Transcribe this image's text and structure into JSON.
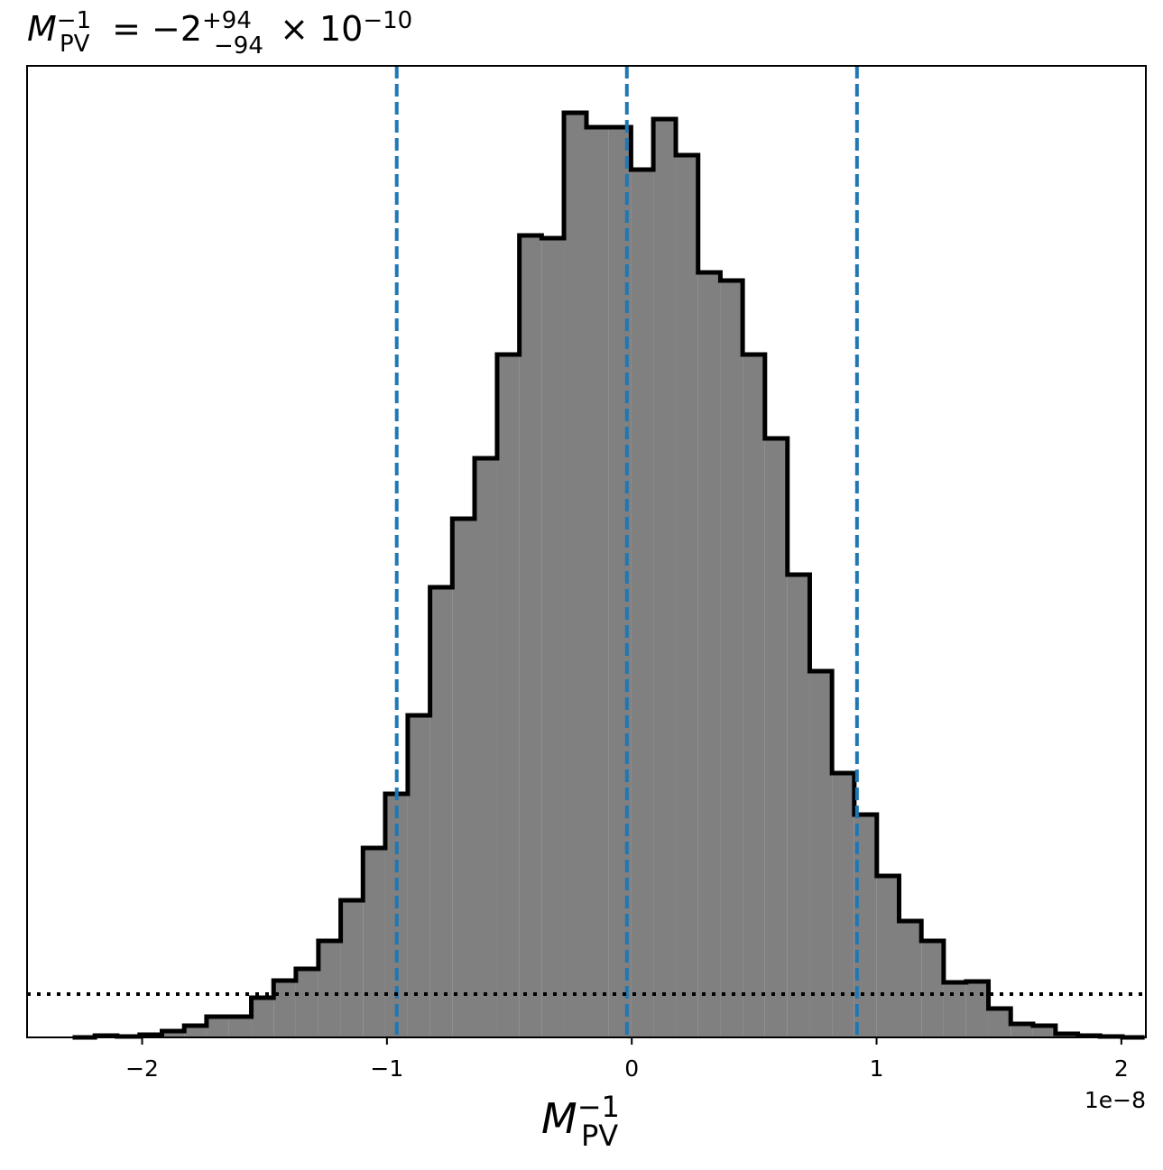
{
  "chart_data": {
    "type": "histogram",
    "title": {
      "symbol": "M",
      "sub": "PV",
      "sup": "−1",
      "rest": " = −2",
      "upper": "+94",
      "lower": "−94",
      "tail": " × 10",
      "exp": "−10"
    },
    "xlabel": {
      "symbol": "M",
      "sub": "PV",
      "sup": "−1"
    },
    "x_offset": "1e−8",
    "bins": [
      -2.284,
      -2.193,
      -2.102,
      -2.01,
      -1.919,
      -1.828,
      -1.737,
      -1.645,
      -1.554,
      -1.463,
      -1.372,
      -1.28,
      -1.189,
      -1.098,
      -1.007,
      -0.915,
      -0.824,
      -0.733,
      -0.642,
      -0.55,
      -0.459,
      -0.368,
      -0.277,
      -0.185,
      -0.094,
      -0.003,
      0.088,
      0.18,
      0.271,
      0.362,
      0.453,
      0.544,
      0.636,
      0.727,
      0.818,
      0.909,
      1.001,
      1.092,
      1.183,
      1.274,
      1.366,
      1.457,
      1.548,
      1.639,
      1.731,
      1.822,
      1.913,
      2.004,
      2.095
    ],
    "values": [
      0,
      2,
      1,
      3,
      7,
      13,
      23,
      23,
      44,
      63,
      76,
      107,
      152,
      210,
      270,
      357,
      499,
      575,
      642,
      757,
      889,
      886,
      1025,
      1009,
      1009,
      962,
      1018,
      978,
      848,
      839,
      757,
      664,
      513,
      406,
      293,
      247,
      179,
      129,
      107,
      61,
      62,
      32,
      15,
      13,
      4,
      2,
      1,
      0
    ],
    "color": "#808080",
    "edgecolor": "#000000",
    "xlim": [
      -2.47,
      2.1
    ],
    "ylim": [
      0,
      1077
    ],
    "xticks": [
      {
        "value": -2,
        "label": "−2"
      },
      {
        "value": -1,
        "label": "−1"
      },
      0,
      1,
      2
    ],
    "vlines": [
      -0.96,
      -0.02,
      0.92
    ],
    "vline_color": "#1f77b4",
    "hline": 48,
    "hline_color": "#000000"
  }
}
